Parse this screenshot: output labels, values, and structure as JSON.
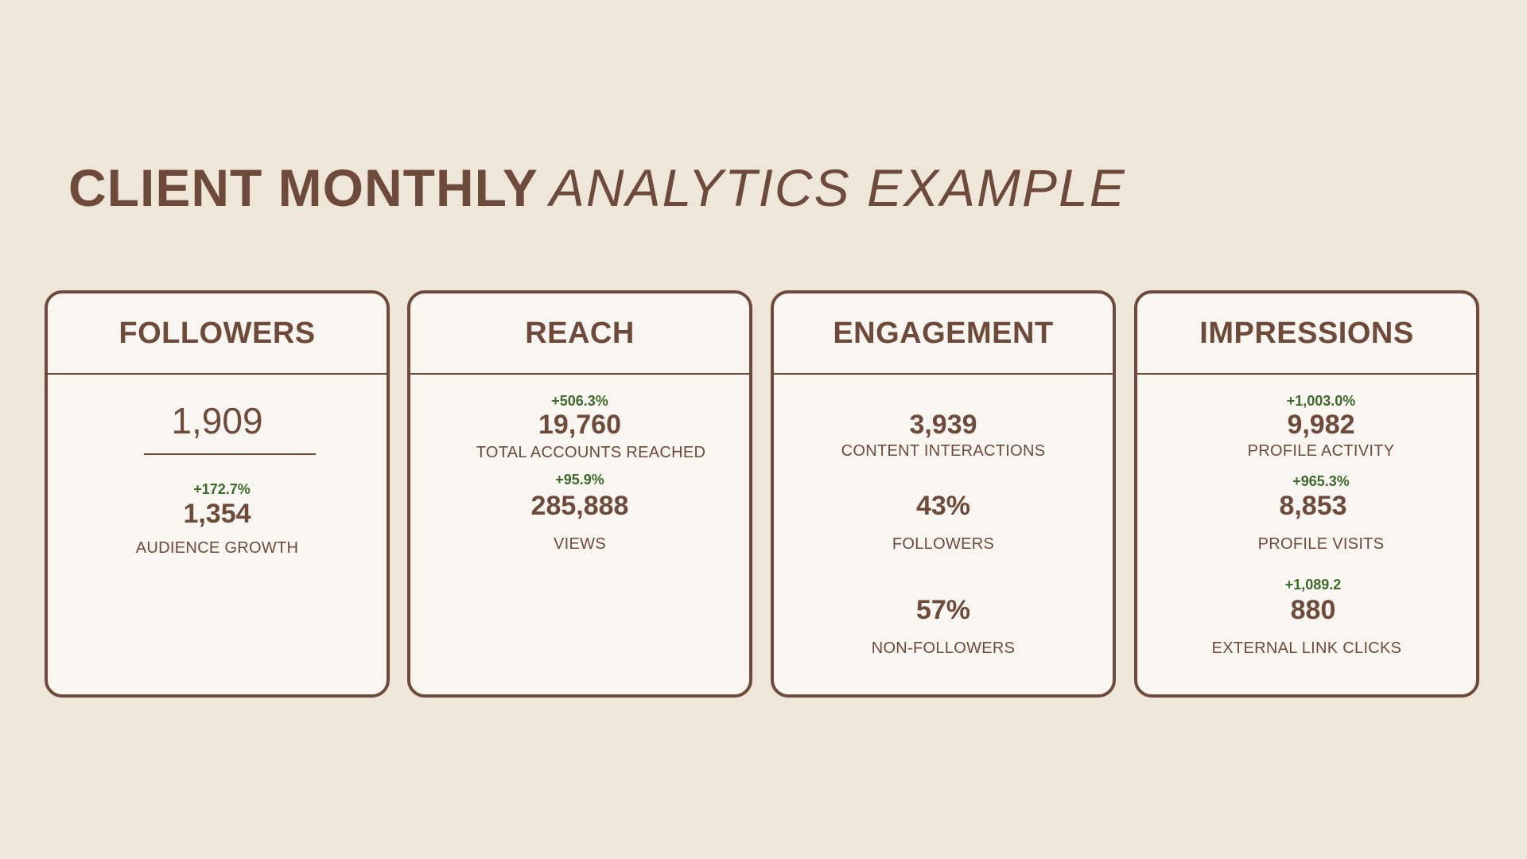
{
  "title": {
    "bold": "CLIENT MONTHLY",
    "light": "ANALYTICS EXAMPLE"
  },
  "cards": [
    {
      "heading": "FOLLOWERS",
      "total": "1,909",
      "metrics": [
        {
          "change": "+172.7%",
          "value": "1,354",
          "label": "AUDIENCE GROWTH"
        }
      ]
    },
    {
      "heading": "REACH",
      "metrics": [
        {
          "change": "+506.3%",
          "value": "19,760",
          "label": "TOTAL ACCOUNTS REACHED"
        },
        {
          "change": "+95.9%",
          "value": "285,888",
          "label": "VIEWS"
        }
      ]
    },
    {
      "heading": "ENGAGEMENT",
      "metrics": [
        {
          "value": "3,939",
          "label": "CONTENT INTERACTIONS"
        },
        {
          "value": "43%",
          "label": "FOLLOWERS"
        },
        {
          "value": "57%",
          "label": "NON-FOLLOWERS"
        }
      ]
    },
    {
      "heading": "IMPRESSIONS",
      "metrics": [
        {
          "change": "+1,003.0%",
          "value": "9,982",
          "label": "PROFILE ACTIVITY"
        },
        {
          "change": "+965.3%",
          "value": "8,853",
          "label": "PROFILE VISITS"
        },
        {
          "change": "+1,089.2",
          "value": "880",
          "label": "EXTERNAL LINK CLICKS"
        }
      ]
    }
  ],
  "colors": {
    "background": "#efe6da",
    "text": "#6e4a3b",
    "card": "#f9f6f1",
    "positive_change": "#3f6a2e"
  }
}
